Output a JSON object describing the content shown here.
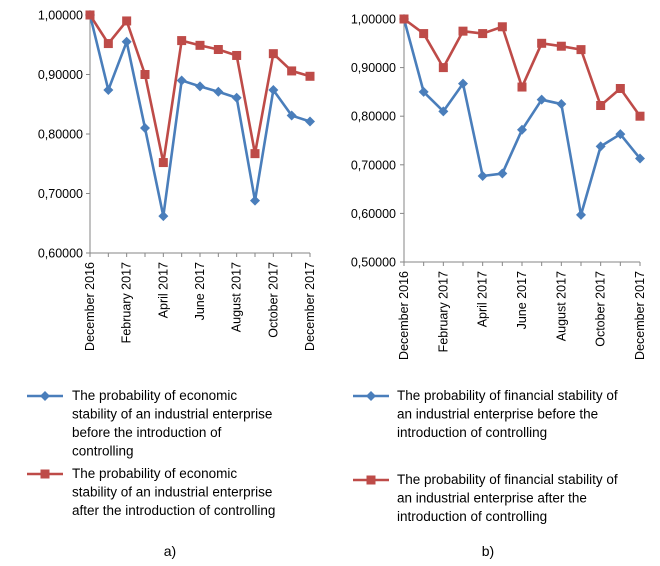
{
  "chart_data": [
    {
      "type": "line",
      "caption": "a)",
      "ylim": [
        0.6,
        1.0
      ],
      "yticks": [
        "0,60000",
        "0,70000",
        "0,80000",
        "0,90000",
        "1,00000"
      ],
      "xtick_labels": [
        "December 2016",
        "February 2017",
        "April 2017",
        "June 2017",
        "August 2017",
        "October 2017",
        "December 2017"
      ],
      "x": [
        "December 2016",
        "January 2017",
        "February 2017",
        "March 2017",
        "April 2017",
        "May 2017",
        "June 2017",
        "July 2017",
        "August 2017",
        "September 2017",
        "October 2017",
        "November 2017",
        "December 2017"
      ],
      "series": [
        {
          "name": "The probability of economic stability of an industrial enterprise before the introduction of controlling",
          "legend_lines": [
            "The probability of economic",
            "stability of an industrial enterprise",
            "before the introduction of",
            "controlling"
          ],
          "color": "#4a7ebb",
          "marker": "diamond",
          "values": [
            1.0,
            0.874,
            0.955,
            0.81,
            0.662,
            0.89,
            0.88,
            0.871,
            0.861,
            0.688,
            0.874,
            0.831,
            0.821
          ]
        },
        {
          "name": "The probability of economic stability of an industrial enterprise after the introduction of controlling",
          "legend_lines": [
            "The probability of economic",
            "stability of an industrial enterprise",
            "after the introduction of controlling"
          ],
          "color": "#be4b48",
          "marker": "square",
          "values": [
            1.0,
            0.952,
            0.99,
            0.9,
            0.752,
            0.957,
            0.949,
            0.942,
            0.932,
            0.767,
            0.935,
            0.906,
            0.897
          ]
        }
      ]
    },
    {
      "type": "line",
      "caption": "b)",
      "ylim": [
        0.5,
        1.0
      ],
      "yticks": [
        "0,50000",
        "0,60000",
        "0,70000",
        "0,80000",
        "0,90000",
        "1,00000"
      ],
      "xtick_labels": [
        "December 2016",
        "February 2017",
        "April 2017",
        "June 2017",
        "August 2017",
        "October 2017",
        "December 2017"
      ],
      "x": [
        "December 2016",
        "January 2017",
        "February 2017",
        "March 2017",
        "April 2017",
        "May 2017",
        "June 2017",
        "July 2017",
        "August 2017",
        "September 2017",
        "October 2017",
        "November 2017",
        "December 2017"
      ],
      "series": [
        {
          "name": "The probability of financial stability of an industrial enterprise before the introduction of controlling",
          "legend_lines": [
            "The probability of financial stability of",
            "an industrial enterprise before the",
            "introduction of controlling"
          ],
          "color": "#4a7ebb",
          "marker": "diamond",
          "values": [
            1.0,
            0.85,
            0.81,
            0.867,
            0.677,
            0.682,
            0.772,
            0.834,
            0.825,
            0.597,
            0.738,
            0.763,
            0.713
          ]
        },
        {
          "name": "The probability of financial stability of an industrial enterprise after the introduction of controlling",
          "legend_lines": [
            "The probability of financial stability of",
            "an industrial enterprise after the",
            "introduction of controlling"
          ],
          "color": "#be4b48",
          "marker": "square",
          "values": [
            1.0,
            0.97,
            0.9,
            0.975,
            0.97,
            0.984,
            0.86,
            0.95,
            0.944,
            0.937,
            0.822,
            0.857,
            0.8
          ]
        }
      ]
    }
  ]
}
